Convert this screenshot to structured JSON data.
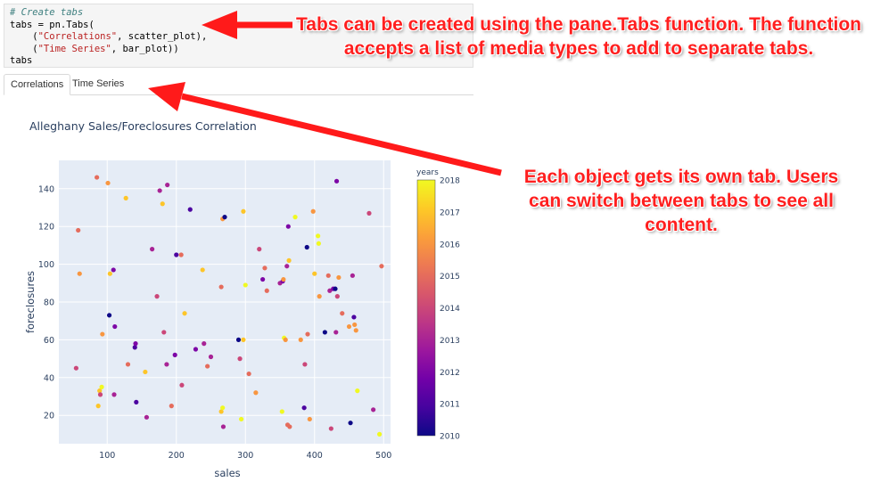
{
  "code": {
    "comment": "# Create tabs",
    "line2_prefix": "tabs = pn.Tabs(",
    "line3_indent": "    (",
    "line3_string": "\"Correlations\"",
    "line3_rest": ", scatter_plot),",
    "line4_indent": "    (",
    "line4_string": "\"Time Series\"",
    "line4_rest": ", bar_plot))",
    "line5": "tabs"
  },
  "tabs": [
    {
      "label": "Correlations",
      "active": true
    },
    {
      "label": "Time Series",
      "active": false
    }
  ],
  "annotations": {
    "tabs_function": "Tabs can be created using the pane.Tabs function. The function accepts a list of media types to add to separate tabs.",
    "own_tab": "Each object gets its own tab. Users can switch between tabs to see all content."
  },
  "colors": {
    "arrow": "#ff1a1a",
    "plot_bg": "#e5ecf6",
    "code_bg": "#f5f5f5"
  },
  "chart_data": {
    "type": "scatter",
    "title": "Alleghany Sales/Foreclosures Correlation",
    "xlabel": "sales",
    "ylabel": "foreclosures",
    "xlim": [
      30,
      510
    ],
    "ylim": [
      5,
      155
    ],
    "xticks": [
      100,
      200,
      300,
      400,
      500
    ],
    "yticks": [
      20,
      40,
      60,
      80,
      100,
      120,
      140
    ],
    "grid": true,
    "colorbar": {
      "title": "years",
      "min": 2010,
      "max": 2018,
      "ticks": [
        2010,
        2011,
        2012,
        2013,
        2014,
        2015,
        2016,
        2017,
        2018
      ],
      "colorscale": [
        "#0d0887",
        "#46039f",
        "#7201a8",
        "#9c179e",
        "#bd3786",
        "#d8576b",
        "#ed7953",
        "#fb9f3a",
        "#fdca26",
        "#f0f921"
      ]
    },
    "points": [
      {
        "x": 55,
        "y": 45,
        "year": 2014
      },
      {
        "x": 58,
        "y": 118,
        "year": 2015
      },
      {
        "x": 60,
        "y": 95,
        "year": 2016
      },
      {
        "x": 85,
        "y": 146,
        "year": 2015
      },
      {
        "x": 87,
        "y": 25,
        "year": 2017
      },
      {
        "x": 89,
        "y": 33,
        "year": 2017
      },
      {
        "x": 90,
        "y": 31,
        "year": 2014
      },
      {
        "x": 92,
        "y": 35,
        "year": 2018
      },
      {
        "x": 93,
        "y": 63,
        "year": 2016
      },
      {
        "x": 101,
        "y": 143,
        "year": 2016
      },
      {
        "x": 104,
        "y": 95,
        "year": 2017
      },
      {
        "x": 103,
        "y": 73,
        "year": 2010
      },
      {
        "x": 109,
        "y": 97,
        "year": 2012
      },
      {
        "x": 110,
        "y": 31,
        "year": 2013
      },
      {
        "x": 111,
        "y": 67,
        "year": 2012
      },
      {
        "x": 127,
        "y": 135,
        "year": 2017
      },
      {
        "x": 130,
        "y": 47,
        "year": 2015
      },
      {
        "x": 140,
        "y": 56,
        "year": 2011
      },
      {
        "x": 141,
        "y": 58,
        "year": 2012
      },
      {
        "x": 142,
        "y": 27,
        "year": 2011
      },
      {
        "x": 155,
        "y": 43,
        "year": 2017
      },
      {
        "x": 157,
        "y": 19,
        "year": 2013
      },
      {
        "x": 165,
        "y": 108,
        "year": 2013
      },
      {
        "x": 172,
        "y": 83,
        "year": 2014
      },
      {
        "x": 176,
        "y": 139,
        "year": 2013
      },
      {
        "x": 180,
        "y": 132,
        "year": 2017
      },
      {
        "x": 182,
        "y": 64,
        "year": 2014
      },
      {
        "x": 186,
        "y": 47,
        "year": 2013
      },
      {
        "x": 187,
        "y": 142,
        "year": 2013
      },
      {
        "x": 193,
        "y": 25,
        "year": 2015
      },
      {
        "x": 198,
        "y": 52,
        "year": 2012
      },
      {
        "x": 200,
        "y": 105,
        "year": 2011
      },
      {
        "x": 207,
        "y": 105,
        "year": 2015
      },
      {
        "x": 208,
        "y": 36,
        "year": 2014
      },
      {
        "x": 212,
        "y": 74,
        "year": 2017
      },
      {
        "x": 220,
        "y": 129,
        "year": 2011
      },
      {
        "x": 228,
        "y": 55,
        "year": 2012
      },
      {
        "x": 238,
        "y": 97,
        "year": 2017
      },
      {
        "x": 240,
        "y": 58,
        "year": 2013
      },
      {
        "x": 245,
        "y": 46,
        "year": 2015
      },
      {
        "x": 250,
        "y": 51,
        "year": 2013
      },
      {
        "x": 265,
        "y": 88,
        "year": 2015
      },
      {
        "x": 265,
        "y": 22,
        "year": 2017
      },
      {
        "x": 267,
        "y": 24,
        "year": 2018
      },
      {
        "x": 267,
        "y": 124,
        "year": 2016
      },
      {
        "x": 268,
        "y": 14,
        "year": 2013
      },
      {
        "x": 270,
        "y": 125,
        "year": 2010
      },
      {
        "x": 290,
        "y": 60,
        "year": 2010
      },
      {
        "x": 292,
        "y": 50,
        "year": 2014
      },
      {
        "x": 294,
        "y": 18,
        "year": 2018
      },
      {
        "x": 297,
        "y": 128,
        "year": 2017
      },
      {
        "x": 297,
        "y": 60,
        "year": 2017
      },
      {
        "x": 300,
        "y": 89,
        "year": 2018
      },
      {
        "x": 305,
        "y": 42,
        "year": 2015
      },
      {
        "x": 315,
        "y": 32,
        "year": 2016
      },
      {
        "x": 320,
        "y": 108,
        "year": 2014
      },
      {
        "x": 325,
        "y": 92,
        "year": 2012
      },
      {
        "x": 328,
        "y": 98,
        "year": 2015
      },
      {
        "x": 331,
        "y": 86,
        "year": 2015
      },
      {
        "x": 350,
        "y": 90,
        "year": 2013
      },
      {
        "x": 353,
        "y": 22,
        "year": 2018
      },
      {
        "x": 354,
        "y": 91,
        "year": 2012
      },
      {
        "x": 355,
        "y": 92,
        "year": 2016
      },
      {
        "x": 356,
        "y": 61,
        "year": 2018
      },
      {
        "x": 358,
        "y": 60,
        "year": 2016
      },
      {
        "x": 360,
        "y": 99,
        "year": 2013
      },
      {
        "x": 361,
        "y": 15,
        "year": 2015
      },
      {
        "x": 362,
        "y": 120,
        "year": 2012
      },
      {
        "x": 363,
        "y": 102,
        "year": 2017
      },
      {
        "x": 364,
        "y": 14,
        "year": 2015
      },
      {
        "x": 372,
        "y": 125,
        "year": 2018
      },
      {
        "x": 380,
        "y": 60,
        "year": 2016
      },
      {
        "x": 385,
        "y": 24,
        "year": 2011
      },
      {
        "x": 386,
        "y": 47,
        "year": 2014
      },
      {
        "x": 389,
        "y": 109,
        "year": 2010
      },
      {
        "x": 390,
        "y": 63,
        "year": 2015
      },
      {
        "x": 393,
        "y": 18,
        "year": 2016
      },
      {
        "x": 398,
        "y": 128,
        "year": 2016
      },
      {
        "x": 400,
        "y": 95,
        "year": 2017
      },
      {
        "x": 405,
        "y": 115,
        "year": 2018
      },
      {
        "x": 406,
        "y": 111,
        "year": 2018
      },
      {
        "x": 407,
        "y": 83,
        "year": 2016
      },
      {
        "x": 415,
        "y": 64,
        "year": 2010
      },
      {
        "x": 420,
        "y": 94,
        "year": 2015
      },
      {
        "x": 422,
        "y": 86,
        "year": 2013
      },
      {
        "x": 424,
        "y": 13,
        "year": 2014
      },
      {
        "x": 427,
        "y": 87,
        "year": 2012
      },
      {
        "x": 430,
        "y": 87,
        "year": 2010
      },
      {
        "x": 431,
        "y": 64,
        "year": 2013
      },
      {
        "x": 432,
        "y": 144,
        "year": 2012
      },
      {
        "x": 433,
        "y": 83,
        "year": 2014
      },
      {
        "x": 435,
        "y": 93,
        "year": 2016
      },
      {
        "x": 440,
        "y": 74,
        "year": 2015
      },
      {
        "x": 450,
        "y": 67,
        "year": 2016
      },
      {
        "x": 452,
        "y": 16,
        "year": 2010
      },
      {
        "x": 455,
        "y": 94,
        "year": 2013
      },
      {
        "x": 457,
        "y": 72,
        "year": 2011
      },
      {
        "x": 458,
        "y": 68,
        "year": 2016
      },
      {
        "x": 460,
        "y": 65,
        "year": 2016
      },
      {
        "x": 462,
        "y": 33,
        "year": 2018
      },
      {
        "x": 479,
        "y": 127,
        "year": 2014
      },
      {
        "x": 485,
        "y": 23,
        "year": 2013
      },
      {
        "x": 494,
        "y": 10,
        "year": 2018
      },
      {
        "x": 497,
        "y": 99,
        "year": 2015
      }
    ]
  }
}
